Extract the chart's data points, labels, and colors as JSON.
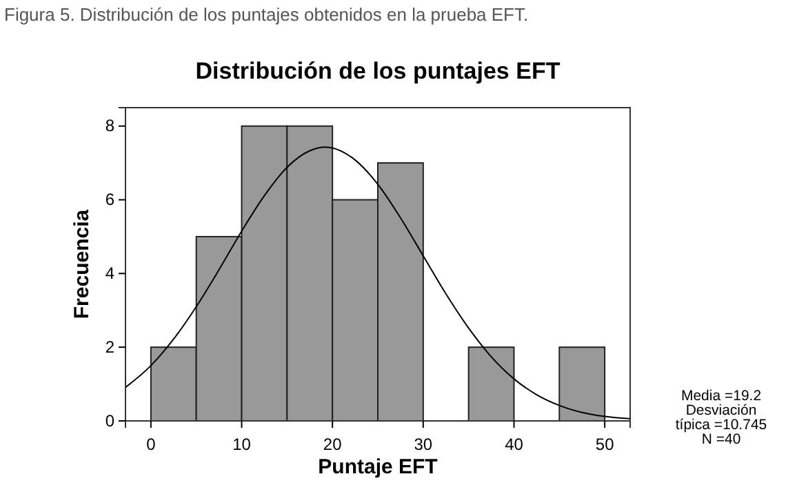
{
  "chart_data": {
    "type": "histogram",
    "title": "Distribución de los puntajes EFT",
    "xlabel": "Puntaje EFT",
    "ylabel": "Frecuencia",
    "bins": [
      0,
      5,
      10,
      15,
      20,
      25,
      30,
      35,
      40,
      45,
      50
    ],
    "values": [
      2,
      5,
      8,
      8,
      6,
      7,
      0,
      2,
      0,
      2
    ],
    "color": "#999999",
    "series": [
      {
        "type": "line",
        "color": "#000000",
        "x": [
          -2.8,
          0,
          2.5,
          5,
          7.5,
          10,
          12.5,
          15,
          17.5,
          19.2,
          22.5,
          25,
          27.5,
          30,
          32.5,
          35,
          37.5,
          40,
          42.5,
          45,
          47.5,
          50,
          52.8
        ],
        "values": [
          0.91,
          1.5,
          2.22,
          3.1,
          4.1,
          5.15,
          6.11,
          6.88,
          7.33,
          7.43,
          7.08,
          6.42,
          5.51,
          4.48,
          3.45,
          2.52,
          1.74,
          1.14,
          0.71,
          0.42,
          0.23,
          0.12,
          0.06
        ]
      }
    ],
    "xlim": [
      -2.8,
      52.8
    ],
    "xticks": [
      0,
      10,
      20,
      30,
      40,
      50
    ],
    "ylim": [
      0,
      8.5
    ],
    "yticks": [
      0,
      2,
      4,
      6,
      8
    ],
    "annotations": [
      "Figura 5. Distribución de los puntajes obtenidos en la prueba EFT.",
      "Media =19.2",
      "Desviación",
      "típica =10.745",
      "N =40"
    ]
  }
}
